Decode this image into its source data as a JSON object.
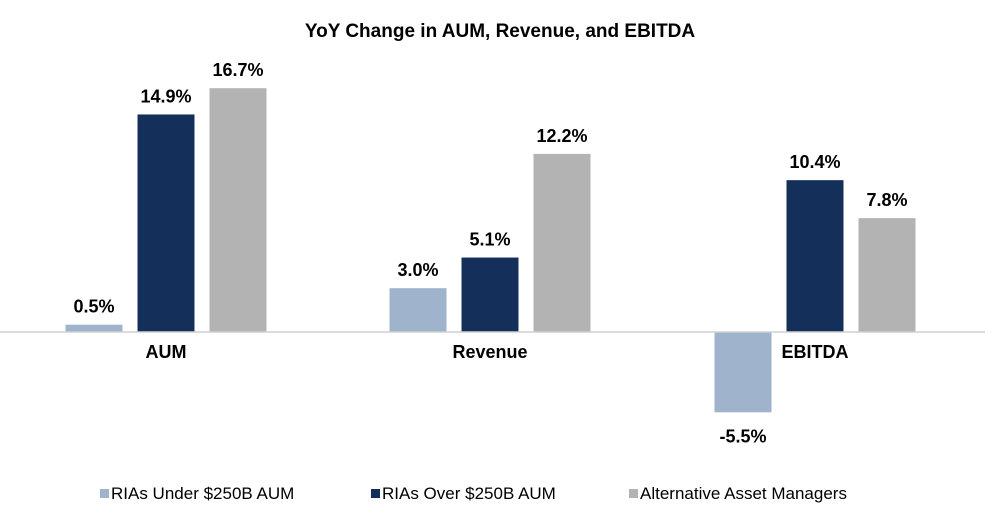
{
  "chart_data": {
    "type": "bar",
    "title": "YoY Change in AUM, Revenue, and EBITDA",
    "categories": [
      "AUM",
      "Revenue",
      "EBITDA"
    ],
    "series": [
      {
        "name": "RIAs Under $250B AUM",
        "color": "#9fb3cc",
        "values": [
          0.5,
          3.0,
          -5.5
        ],
        "labels": [
          "0.5%",
          "3.0%",
          "-5.5%"
        ]
      },
      {
        "name": "RIAs Over $250B AUM",
        "color": "#14305a",
        "values": [
          14.9,
          5.1,
          10.4
        ],
        "labels": [
          "14.9%",
          "5.1%",
          "10.4%"
        ]
      },
      {
        "name": "Alternative Asset Managers",
        "color": "#b3b3b3",
        "values": [
          16.7,
          12.2,
          7.8
        ],
        "labels": [
          "16.7%",
          "12.2%",
          "7.8%"
        ]
      }
    ],
    "unit": "%",
    "legend_position": "bottom",
    "grid": false
  }
}
